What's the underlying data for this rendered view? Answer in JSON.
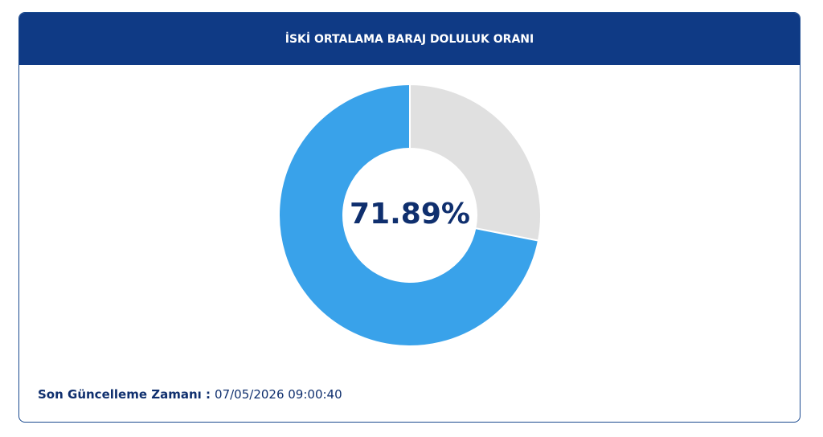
{
  "chart_data": {
    "type": "donut",
    "title": "İSKİ ORTALAMA BARAJ DOLULUK ORANI",
    "values": [
      28.11,
      71.89
    ],
    "value_labels": [
      null,
      "71.89%"
    ],
    "colors": [
      "#e0e0e0",
      "#39a2ea"
    ]
  },
  "footer": {
    "label": "Son Güncelleme Zamanı :",
    "value": "07/05/2026 09:00:40"
  }
}
